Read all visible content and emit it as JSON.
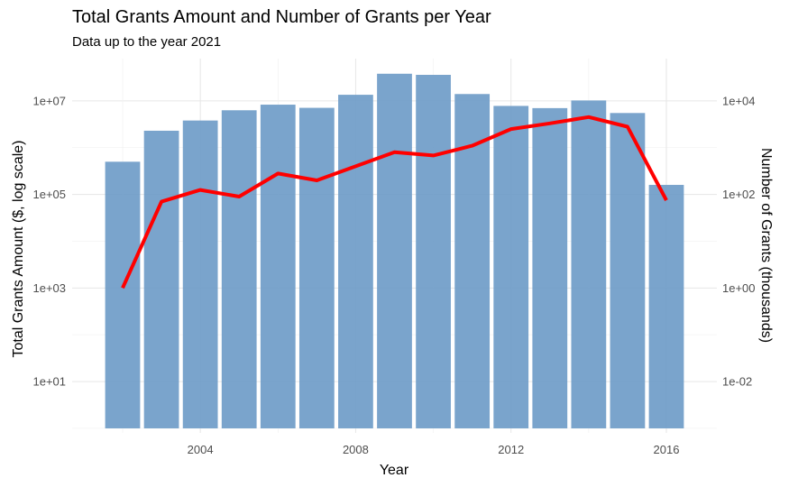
{
  "chart_data": {
    "type": "bar",
    "title": "Total Grants Amount and Number of Grants per Year",
    "subtitle": "Data up to the year 2021",
    "xlabel": "Year",
    "ylabel": "Total Grants Amount ($, log scale)",
    "y2label": "Number of Grants (thousands)",
    "x": [
      2002,
      2003,
      2004,
      2005,
      2006,
      2007,
      2008,
      2009,
      2010,
      2011,
      2012,
      2013,
      2014,
      2015,
      2016
    ],
    "xlim": [
      2000.7,
      2017.3
    ],
    "x_ticks": [
      2004,
      2008,
      2012,
      2016
    ],
    "x_tick_labels": [
      "2004",
      "2008",
      "2012",
      "2016"
    ],
    "y_scale": "log10",
    "ylim": [
      0.8,
      80000000
    ],
    "y_ticks": [
      10,
      1000,
      100000,
      10000000
    ],
    "y_tick_labels": [
      "1e+01",
      "1e+03",
      "1e+05",
      "1e+07"
    ],
    "y2_scale": "log10",
    "y2_ticks": [
      0.01,
      1,
      100,
      10000
    ],
    "y2_tick_labels": [
      "1e-02",
      "1e+00",
      "1e+02",
      "1e+04"
    ],
    "grid": true,
    "bar_color": "#6f9cc8",
    "line_color": "#ff0000",
    "series": [
      {
        "type": "bar",
        "values": [
          500000,
          2300000,
          3800000,
          6300000,
          8300000,
          7100000,
          13500000,
          38000000,
          36000000,
          14000000,
          7800000,
          7000000,
          10200000,
          5500000,
          160000
        ]
      },
      {
        "type": "line",
        "axis": "secondary",
        "values": [
          1,
          70,
          125,
          90,
          280,
          200,
          400,
          800,
          680,
          1100,
          2500,
          3300,
          4500,
          2800,
          75
        ]
      }
    ]
  }
}
